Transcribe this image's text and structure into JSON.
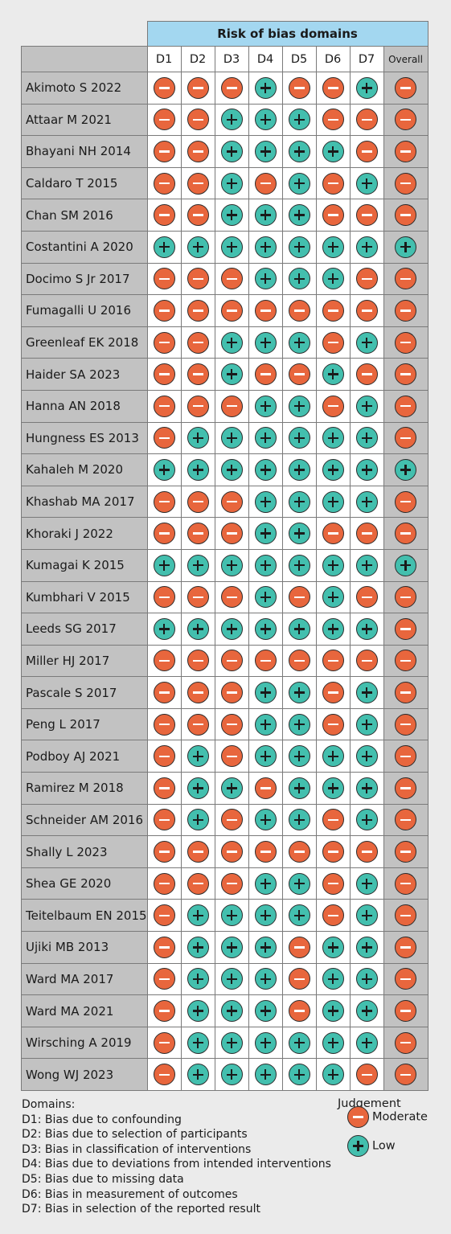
{
  "chart_data": {
    "type": "table",
    "title": "Risk of bias domains",
    "columns": [
      "D1",
      "D2",
      "D3",
      "D4",
      "D5",
      "D6",
      "D7",
      "Overall"
    ],
    "codes": {
      "M": "Moderate",
      "L": "Low"
    },
    "rows": [
      {
        "study": "Akimoto S 2022",
        "judgements": [
          "M",
          "M",
          "M",
          "L",
          "M",
          "M",
          "L",
          "M"
        ]
      },
      {
        "study": "Attaar M 2021",
        "judgements": [
          "M",
          "M",
          "L",
          "L",
          "L",
          "M",
          "M",
          "M"
        ]
      },
      {
        "study": "Bhayani NH 2014",
        "judgements": [
          "M",
          "M",
          "L",
          "L",
          "L",
          "L",
          "M",
          "M"
        ]
      },
      {
        "study": "Caldaro T 2015",
        "judgements": [
          "M",
          "M",
          "L",
          "M",
          "L",
          "M",
          "L",
          "M"
        ]
      },
      {
        "study": "Chan SM 2016",
        "judgements": [
          "M",
          "M",
          "L",
          "L",
          "L",
          "M",
          "M",
          "M"
        ]
      },
      {
        "study": "Costantini A 2020",
        "judgements": [
          "L",
          "L",
          "L",
          "L",
          "L",
          "L",
          "L",
          "L"
        ]
      },
      {
        "study": "Docimo S Jr 2017",
        "judgements": [
          "M",
          "M",
          "M",
          "L",
          "L",
          "L",
          "M",
          "M"
        ]
      },
      {
        "study": "Fumagalli U 2016",
        "judgements": [
          "M",
          "M",
          "M",
          "M",
          "M",
          "M",
          "M",
          "M"
        ]
      },
      {
        "study": "Greenleaf EK 2018",
        "judgements": [
          "M",
          "M",
          "L",
          "L",
          "L",
          "M",
          "L",
          "M"
        ]
      },
      {
        "study": "Haider SA 2023",
        "judgements": [
          "M",
          "M",
          "L",
          "M",
          "M",
          "L",
          "M",
          "M"
        ]
      },
      {
        "study": "Hanna AN 2018",
        "judgements": [
          "M",
          "M",
          "M",
          "L",
          "L",
          "M",
          "L",
          "M"
        ]
      },
      {
        "study": "Hungness ES 2013",
        "judgements": [
          "M",
          "L",
          "L",
          "L",
          "L",
          "L",
          "L",
          "M"
        ]
      },
      {
        "study": "Kahaleh M 2020",
        "judgements": [
          "L",
          "L",
          "L",
          "L",
          "L",
          "L",
          "L",
          "L"
        ]
      },
      {
        "study": "Khashab MA 2017",
        "judgements": [
          "M",
          "M",
          "M",
          "L",
          "L",
          "L",
          "L",
          "M"
        ]
      },
      {
        "study": "Khoraki J 2022",
        "judgements": [
          "M",
          "M",
          "M",
          "L",
          "L",
          "M",
          "M",
          "M"
        ]
      },
      {
        "study": "Kumagai K 2015",
        "judgements": [
          "L",
          "L",
          "L",
          "L",
          "L",
          "L",
          "L",
          "L"
        ]
      },
      {
        "study": "Kumbhari V 2015",
        "judgements": [
          "M",
          "M",
          "M",
          "L",
          "M",
          "L",
          "M",
          "M"
        ]
      },
      {
        "study": "Leeds SG 2017",
        "judgements": [
          "L",
          "L",
          "L",
          "L",
          "L",
          "L",
          "L",
          "M"
        ]
      },
      {
        "study": "Miller HJ 2017",
        "judgements": [
          "M",
          "M",
          "M",
          "M",
          "M",
          "M",
          "M",
          "M"
        ]
      },
      {
        "study": "Pascale S 2017",
        "judgements": [
          "M",
          "M",
          "M",
          "L",
          "L",
          "M",
          "L",
          "M"
        ]
      },
      {
        "study": "Peng L 2017",
        "judgements": [
          "M",
          "M",
          "M",
          "L",
          "L",
          "M",
          "L",
          "M"
        ]
      },
      {
        "study": "Podboy AJ 2021",
        "judgements": [
          "M",
          "L",
          "M",
          "L",
          "L",
          "L",
          "L",
          "M"
        ]
      },
      {
        "study": "Ramirez M 2018",
        "judgements": [
          "M",
          "L",
          "L",
          "M",
          "L",
          "L",
          "L",
          "M"
        ]
      },
      {
        "study": "Schneider AM 2016",
        "judgements": [
          "M",
          "L",
          "M",
          "L",
          "L",
          "M",
          "L",
          "M"
        ]
      },
      {
        "study": "Shally L 2023",
        "judgements": [
          "M",
          "M",
          "M",
          "M",
          "M",
          "M",
          "M",
          "M"
        ]
      },
      {
        "study": "Shea GE 2020",
        "judgements": [
          "M",
          "M",
          "M",
          "L",
          "L",
          "M",
          "L",
          "M"
        ]
      },
      {
        "study": "Teitelbaum EN 2015",
        "judgements": [
          "M",
          "L",
          "L",
          "L",
          "L",
          "M",
          "L",
          "M"
        ]
      },
      {
        "study": "Ujiki MB 2013",
        "judgements": [
          "M",
          "L",
          "L",
          "L",
          "M",
          "L",
          "L",
          "M"
        ]
      },
      {
        "study": "Ward MA 2017",
        "judgements": [
          "M",
          "L",
          "L",
          "L",
          "M",
          "L",
          "L",
          "M"
        ]
      },
      {
        "study": "Ward MA 2021",
        "judgements": [
          "M",
          "L",
          "L",
          "L",
          "M",
          "L",
          "L",
          "M"
        ]
      },
      {
        "study": "Wirsching A 2019",
        "judgements": [
          "M",
          "L",
          "L",
          "L",
          "L",
          "L",
          "L",
          "M"
        ]
      },
      {
        "study": "Wong WJ 2023",
        "judgements": [
          "M",
          "L",
          "L",
          "L",
          "L",
          "L",
          "M",
          "M"
        ]
      }
    ],
    "domains_legend": {
      "title": "Domains:",
      "items": [
        "D1: Bias due to confounding",
        "D2: Bias due to selection of participants",
        "D3: Bias in classification of interventions",
        "D4: Bias due to deviations from intended interventions",
        "D5: Bias due to missing data",
        "D6: Bias in measurement of outcomes",
        "D7: Bias in selection of the reported result"
      ]
    },
    "judgement_legend": {
      "title": "Judgement",
      "items": [
        {
          "code": "M",
          "label": "Moderate"
        },
        {
          "code": "L",
          "label": "Low"
        }
      ]
    },
    "colors": {
      "moderate": "#e8663d",
      "low": "#43bfae",
      "banner": "#a3d7f0",
      "label_bg": "#c2c2c2",
      "page_bg": "#ebebeb"
    }
  }
}
